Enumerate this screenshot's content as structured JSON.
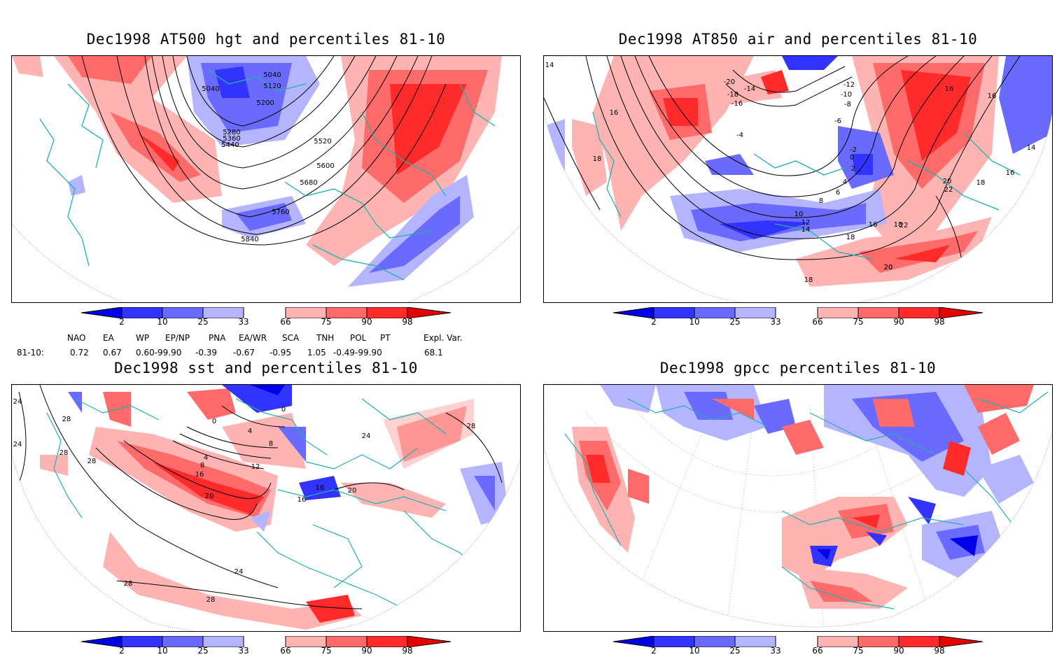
{
  "panels": [
    {
      "title": "Dec1998 AT500 hgt and percentiles 81-10",
      "contour_labels": [
        "5040",
        "5120",
        "5040",
        "5200",
        "5280",
        "5360",
        "5440",
        "5520",
        "5600",
        "5680",
        "5760",
        "5840"
      ]
    },
    {
      "title": "Dec1998 AT850 air and percentiles 81-10",
      "contour_labels": [
        "14",
        "16",
        "18",
        "-20",
        "-18",
        "-16",
        "-14",
        "-12",
        "-10",
        "-8",
        "-6",
        "-4",
        "-2",
        "0",
        "2",
        "4",
        "6",
        "8",
        "10",
        "12",
        "14",
        "16",
        "18",
        "20",
        "22",
        "16",
        "16",
        "14",
        "16",
        "18",
        "20",
        "22",
        "18",
        "20",
        "18"
      ]
    },
    {
      "title": "Dec1998 sst and percentiles 81-10",
      "contour_labels": [
        "24",
        "24",
        "28",
        "28",
        "28",
        "0",
        "0",
        "4",
        "8",
        "4",
        "8",
        "12",
        "16",
        "20",
        "16",
        "16",
        "20",
        "24",
        "28",
        "28",
        "24",
        "28"
      ]
    },
    {
      "title": "Dec1998 gpcc percentiles 81-10",
      "contour_labels": []
    }
  ],
  "colorbar": {
    "labels": [
      "2",
      "10",
      "25",
      "33",
      "66",
      "75",
      "90",
      "98"
    ],
    "colors": {
      "extreme_low": "#0000e6",
      "p2_10": "#3333ff",
      "p10_25": "#6a6aff",
      "p25_33": "#b4b4ff",
      "p66_75": "#ffb4b4",
      "p75_90": "#ff6a6a",
      "p90_98": "#ff2a2a",
      "extreme_high": "#e60000"
    }
  },
  "teleconnections": {
    "headers": [
      "NAO",
      "EA",
      "WP",
      "EP/NP",
      "PNA",
      "EA/WR",
      "SCA",
      "TNH",
      "POL",
      "PT",
      "Expl. Var."
    ],
    "row_label": "81-10:",
    "values": [
      "0.72",
      "0.67",
      "0.60-99.90",
      "-0.39",
      "-0.67",
      "-0.95",
      "1.05",
      "-0.49-99.90",
      "68.1"
    ]
  },
  "coast_color": "#20b2aa"
}
